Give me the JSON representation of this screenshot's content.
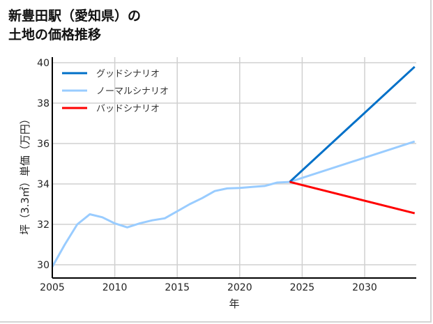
{
  "title": {
    "line1": "新豊田駅（愛知県）の",
    "line2": "土地の価格推移"
  },
  "chart_data": {
    "type": "line",
    "title": "新豊田駅（愛知県）の土地の価格推移",
    "xlabel": "年",
    "ylabel": "坪（3.3㎡）単価（万円）",
    "xlim": [
      2005,
      2034
    ],
    "ylim": [
      29.7,
      40.2
    ],
    "xticks": [
      2005,
      2010,
      2015,
      2020,
      2025,
      2030
    ],
    "yticks": [
      30,
      32,
      34,
      36,
      38,
      40
    ],
    "grid": true,
    "legend_position": "upper left",
    "series": [
      {
        "name": "グッドシナリオ",
        "color": "#0070c8",
        "x": [
          2024,
          2034
        ],
        "values": [
          34.1,
          39.8
        ]
      },
      {
        "name": "ノーマルシナリオ",
        "color": "#99ccff",
        "x": [
          2005,
          2006,
          2007,
          2008,
          2009,
          2010,
          2011,
          2012,
          2013,
          2014,
          2015,
          2016,
          2017,
          2018,
          2019,
          2020,
          2021,
          2022,
          2023,
          2024,
          2034
        ],
        "values": [
          29.9,
          31.0,
          32.0,
          32.5,
          32.35,
          32.05,
          31.85,
          32.05,
          32.2,
          32.3,
          32.65,
          33.0,
          33.3,
          33.65,
          33.78,
          33.8,
          33.85,
          33.9,
          34.07,
          34.1,
          36.1
        ]
      },
      {
        "name": "バッドシナリオ",
        "color": "#ff0000",
        "x": [
          2024,
          2034
        ],
        "values": [
          34.1,
          32.55
        ]
      }
    ]
  }
}
